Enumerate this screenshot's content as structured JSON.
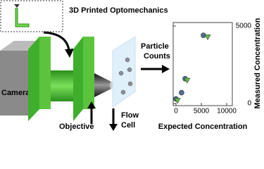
{
  "labels": {
    "title": "3D Printed Optomechanics",
    "particle": "Particle",
    "counts": "Counts",
    "camera": "Camera",
    "objective": "Objective",
    "flow": "Flow",
    "cell": "Cell"
  },
  "chart": {
    "type": "scatter",
    "xlabel": "Expected Concentration",
    "ylabel": "Measured Concentration",
    "xlim": [
      0,
      10000
    ],
    "ylim": [
      0,
      5000
    ],
    "xticks": [
      0,
      5000,
      10000
    ],
    "yticks": [
      0,
      5000
    ],
    "series": [
      {
        "marker": "circle",
        "color": "#4f6f8f",
        "x": [
          5400,
          1800,
          1100,
          0
        ],
        "y": [
          4400,
          1600,
          700,
          300
        ]
      },
      {
        "marker": "triangle",
        "color": "#5cc43c",
        "x": [
          6250,
          2200,
          300
        ],
        "y": [
          4300,
          1500,
          200
        ]
      }
    ]
  }
}
